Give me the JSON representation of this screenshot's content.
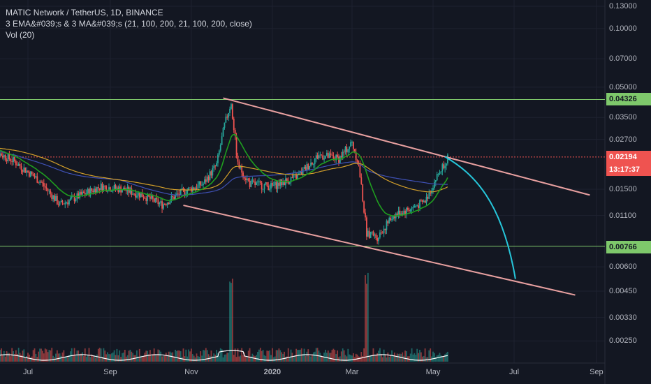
{
  "legend": {
    "title": "MATIC Network / TetherUS, 1D, BINANCE",
    "indicator": "3 EMA&#039;s & 3 MA&#039;s (21, 100, 200, 21, 100, 200, close)",
    "volume": "Vol (20)"
  },
  "price_tags": {
    "upper_level": "0.04326",
    "current_price": "0.02194",
    "countdown": "13:17:37",
    "lower_level": "0.00766"
  },
  "colors": {
    "background": "#131722",
    "up_candle": "#26a69a",
    "down_candle": "#ef5350",
    "ema21": "#1f9e1f",
    "ma_orange": "#d4a02a",
    "ma_blue": "#3f51b5",
    "channel": "#e8a0a0",
    "level_line": "#7ec86b",
    "projection": "#26c6da",
    "volume_ma": "#ffffff"
  },
  "chart_data": {
    "type": "candlestick",
    "y_scale": "log",
    "y_ticks": [
      "0.13000",
      "0.10000",
      "0.07000",
      "0.05000",
      "0.03500",
      "0.02700",
      "0.01500",
      "0.01100",
      "0.00600",
      "0.00450",
      "0.00330",
      "0.00250"
    ],
    "x_ticks": [
      "Jul",
      "Sep",
      "Nov",
      "2020",
      "Mar",
      "May",
      "Jul",
      "Sep"
    ],
    "horizontal_levels": [
      0.04326,
      0.00766
    ],
    "current_price": 0.02194,
    "channel_upper": [
      {
        "x": "2019-11-25",
        "y": 0.044
      },
      {
        "x": "2020-08-27",
        "y": 0.014
      }
    ],
    "channel_lower": [
      {
        "x": "2019-10-26",
        "y": 0.0124
      },
      {
        "x": "2020-08-16",
        "y": 0.0043
      }
    ],
    "projection": [
      {
        "x": "2020-05-10",
        "y": 0.022
      },
      {
        "x": "2020-06-01",
        "y": 0.018
      },
      {
        "x": "2020-06-22",
        "y": 0.011
      },
      {
        "x": "2020-07-02",
        "y": 0.0052
      }
    ],
    "price_path": [
      {
        "x": "2019-06-01",
        "y": 0.0245
      },
      {
        "x": "2019-06-20",
        "y": 0.021
      },
      {
        "x": "2019-07-10",
        "y": 0.0165
      },
      {
        "x": "2019-07-25",
        "y": 0.0125
      },
      {
        "x": "2019-08-10",
        "y": 0.014
      },
      {
        "x": "2019-08-25",
        "y": 0.0155
      },
      {
        "x": "2019-09-10",
        "y": 0.015
      },
      {
        "x": "2019-09-25",
        "y": 0.014
      },
      {
        "x": "2019-10-10",
        "y": 0.0125
      },
      {
        "x": "2019-10-25",
        "y": 0.0145
      },
      {
        "x": "2019-11-10",
        "y": 0.016
      },
      {
        "x": "2019-11-20",
        "y": 0.02
      },
      {
        "x": "2019-11-26",
        "y": 0.032
      },
      {
        "x": "2019-12-01",
        "y": 0.042
      },
      {
        "x": "2019-12-06",
        "y": 0.02
      },
      {
        "x": "2019-12-15",
        "y": 0.016
      },
      {
        "x": "2020-01-01",
        "y": 0.0155
      },
      {
        "x": "2020-01-20",
        "y": 0.0175
      },
      {
        "x": "2020-02-05",
        "y": 0.0225
      },
      {
        "x": "2020-02-20",
        "y": 0.0215
      },
      {
        "x": "2020-03-01",
        "y": 0.026
      },
      {
        "x": "2020-03-06",
        "y": 0.02
      },
      {
        "x": "2020-03-12",
        "y": 0.009
      },
      {
        "x": "2020-03-20",
        "y": 0.0085
      },
      {
        "x": "2020-04-01",
        "y": 0.011
      },
      {
        "x": "2020-04-15",
        "y": 0.012
      },
      {
        "x": "2020-04-25",
        "y": 0.013
      },
      {
        "x": "2020-05-05",
        "y": 0.018
      },
      {
        "x": "2020-05-12",
        "y": 0.0219
      }
    ],
    "volume_spikes": [
      {
        "x": "2019-12-01",
        "value": "high"
      },
      {
        "x": "2020-03-12",
        "value": "high"
      }
    ]
  }
}
